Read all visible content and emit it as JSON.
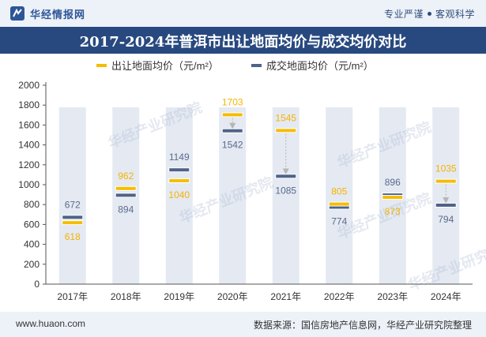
{
  "header": {
    "brand": "华经情报网",
    "slogan_left": "专业严谨",
    "slogan_right": "客观科学"
  },
  "title": "2017-2024年普洱市出让地面均价与成交均价对比",
  "footer": {
    "website": "www.huaon.com",
    "source": "数据来源：国信房地产信息网，华经产业研究院整理"
  },
  "colors": {
    "series_1": "#f5bd00",
    "series_2": "#4e628a",
    "column_bg": "#e4e9f2",
    "label_series_1": "#f5b400",
    "label_series_2": "#5b6b8c",
    "arrow": "#b6b6b6",
    "watermark": "#b3bfd6"
  },
  "watermark_text": "华经产业研究院",
  "chart_data": {
    "type": "range-marker",
    "categories": [
      "2017年",
      "2018年",
      "2019年",
      "2020年",
      "2021年",
      "2022年",
      "2023年",
      "2024年"
    ],
    "series": [
      {
        "name": "出让地面均价（元/m²）",
        "values": [
          618,
          962,
          1040,
          1703,
          1545,
          805,
          873,
          1035
        ]
      },
      {
        "name": "成交地面均价（元/m²）",
        "values": [
          672,
          894,
          1149,
          1542,
          1085,
          774,
          896,
          794
        ]
      }
    ],
    "ylim": [
      0,
      2000
    ],
    "yticks": [
      0,
      200,
      400,
      600,
      800,
      1000,
      1200,
      1400,
      1600,
      1800,
      2000
    ],
    "legend_position": "top"
  }
}
